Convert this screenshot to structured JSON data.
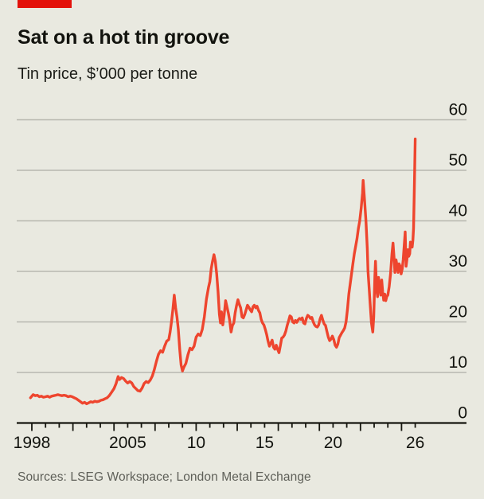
{
  "header": {
    "title": "Sat on a hot tin groove",
    "subtitle": "Tin price, $’000 per tonne"
  },
  "footer": {
    "sources": "Sources: LSEG Workspace; London Metal Exchange"
  },
  "colors": {
    "background": "#e9e9e0",
    "brand_red": "#e3120b",
    "line_red": "#ee452e",
    "gridline": "#b8b8af",
    "axis": "#16160f",
    "text_dark": "#12130e",
    "text_muted": "#5e5f58"
  },
  "chart_data": {
    "type": "line",
    "title": "Sat on a hot tin groove",
    "ylabel": "Tin price, $'000 per tonne",
    "xlabel": "",
    "ylim": [
      0,
      60
    ],
    "y_ticks": [
      0,
      10,
      20,
      30,
      40,
      50,
      60
    ],
    "grid": "horizontal",
    "x_year_ticks": {
      "start": 1998,
      "end": 2026,
      "step": 1,
      "tall_every": 3
    },
    "x_labels": [
      {
        "year": 1998,
        "label": "1998"
      },
      {
        "year": 2005,
        "label": "2005"
      },
      {
        "year": 2010,
        "label": "10"
      },
      {
        "year": 2015,
        "label": "15"
      },
      {
        "year": 2020,
        "label": "20"
      },
      {
        "year": 2026,
        "label": "26"
      }
    ],
    "series": [
      {
        "name": "Tin price, $'000 per tonne",
        "color": "#ee452e",
        "points": [
          [
            1997.9,
            5.0
          ],
          [
            1998.0,
            5.3
          ],
          [
            1998.1,
            5.6
          ],
          [
            1998.25,
            5.4
          ],
          [
            1998.4,
            5.5
          ],
          [
            1998.55,
            5.2
          ],
          [
            1998.7,
            5.3
          ],
          [
            1998.85,
            5.1
          ],
          [
            1999.0,
            5.2
          ],
          [
            1999.15,
            5.3
          ],
          [
            1999.3,
            5.1
          ],
          [
            1999.45,
            5.3
          ],
          [
            1999.6,
            5.4
          ],
          [
            1999.75,
            5.5
          ],
          [
            1999.9,
            5.6
          ],
          [
            2000.05,
            5.5
          ],
          [
            2000.2,
            5.4
          ],
          [
            2000.35,
            5.5
          ],
          [
            2000.5,
            5.4
          ],
          [
            2000.65,
            5.2
          ],
          [
            2000.8,
            5.3
          ],
          [
            2000.95,
            5.2
          ],
          [
            2001.1,
            5.0
          ],
          [
            2001.25,
            4.8
          ],
          [
            2001.4,
            4.5
          ],
          [
            2001.55,
            4.2
          ],
          [
            2001.7,
            3.9
          ],
          [
            2001.85,
            4.1
          ],
          [
            2002.0,
            3.8
          ],
          [
            2002.15,
            4.0
          ],
          [
            2002.3,
            4.2
          ],
          [
            2002.45,
            4.1
          ],
          [
            2002.6,
            4.3
          ],
          [
            2002.75,
            4.2
          ],
          [
            2002.9,
            4.3
          ],
          [
            2003.05,
            4.5
          ],
          [
            2003.2,
            4.6
          ],
          [
            2003.35,
            4.8
          ],
          [
            2003.5,
            5.0
          ],
          [
            2003.65,
            5.4
          ],
          [
            2003.8,
            6.0
          ],
          [
            2004.0,
            6.8
          ],
          [
            2004.15,
            7.8
          ],
          [
            2004.3,
            9.2
          ],
          [
            2004.4,
            8.6
          ],
          [
            2004.55,
            9.0
          ],
          [
            2004.7,
            8.8
          ],
          [
            2004.85,
            8.3
          ],
          [
            2005.0,
            7.9
          ],
          [
            2005.15,
            8.2
          ],
          [
            2005.3,
            7.9
          ],
          [
            2005.45,
            7.2
          ],
          [
            2005.6,
            6.8
          ],
          [
            2005.75,
            6.4
          ],
          [
            2005.9,
            6.3
          ],
          [
            2006.05,
            6.9
          ],
          [
            2006.2,
            7.8
          ],
          [
            2006.35,
            8.2
          ],
          [
            2006.5,
            8.0
          ],
          [
            2006.65,
            8.5
          ],
          [
            2006.8,
            9.3
          ],
          [
            2006.95,
            10.6
          ],
          [
            2007.1,
            12.2
          ],
          [
            2007.25,
            13.6
          ],
          [
            2007.4,
            14.3
          ],
          [
            2007.55,
            14.0
          ],
          [
            2007.7,
            15.2
          ],
          [
            2007.85,
            16.2
          ],
          [
            2008.0,
            16.5
          ],
          [
            2008.1,
            18.0
          ],
          [
            2008.2,
            20.0
          ],
          [
            2008.3,
            22.5
          ],
          [
            2008.4,
            25.3
          ],
          [
            2008.5,
            22.8
          ],
          [
            2008.6,
            21.0
          ],
          [
            2008.7,
            18.5
          ],
          [
            2008.8,
            14.5
          ],
          [
            2008.9,
            11.5
          ],
          [
            2009.0,
            10.3
          ],
          [
            2009.1,
            11.0
          ],
          [
            2009.25,
            11.8
          ],
          [
            2009.4,
            13.5
          ],
          [
            2009.55,
            14.8
          ],
          [
            2009.7,
            14.5
          ],
          [
            2009.85,
            15.2
          ],
          [
            2010.0,
            17.0
          ],
          [
            2010.15,
            17.6
          ],
          [
            2010.3,
            17.3
          ],
          [
            2010.45,
            18.5
          ],
          [
            2010.6,
            21.0
          ],
          [
            2010.75,
            24.5
          ],
          [
            2010.9,
            26.8
          ],
          [
            2011.0,
            28.0
          ],
          [
            2011.1,
            30.5
          ],
          [
            2011.2,
            32.0
          ],
          [
            2011.3,
            33.3
          ],
          [
            2011.4,
            32.0
          ],
          [
            2011.5,
            29.5
          ],
          [
            2011.6,
            26.0
          ],
          [
            2011.7,
            21.5
          ],
          [
            2011.78,
            19.8
          ],
          [
            2011.85,
            22.0
          ],
          [
            2011.95,
            19.4
          ],
          [
            2012.05,
            21.5
          ],
          [
            2012.15,
            24.2
          ],
          [
            2012.25,
            23.0
          ],
          [
            2012.35,
            21.8
          ],
          [
            2012.45,
            20.3
          ],
          [
            2012.55,
            18.0
          ],
          [
            2012.65,
            19.3
          ],
          [
            2012.75,
            19.8
          ],
          [
            2012.85,
            21.8
          ],
          [
            2012.95,
            23.2
          ],
          [
            2013.05,
            24.4
          ],
          [
            2013.15,
            23.5
          ],
          [
            2013.25,
            22.8
          ],
          [
            2013.35,
            21.0
          ],
          [
            2013.45,
            20.8
          ],
          [
            2013.55,
            21.5
          ],
          [
            2013.65,
            22.4
          ],
          [
            2013.75,
            23.3
          ],
          [
            2013.85,
            22.9
          ],
          [
            2013.95,
            22.4
          ],
          [
            2014.05,
            22.0
          ],
          [
            2014.15,
            23.0
          ],
          [
            2014.25,
            23.3
          ],
          [
            2014.35,
            22.8
          ],
          [
            2014.45,
            23.1
          ],
          [
            2014.55,
            22.3
          ],
          [
            2014.65,
            21.8
          ],
          [
            2014.75,
            20.5
          ],
          [
            2014.85,
            19.8
          ],
          [
            2014.95,
            19.4
          ],
          [
            2015.05,
            18.5
          ],
          [
            2015.15,
            17.5
          ],
          [
            2015.25,
            16.2
          ],
          [
            2015.35,
            15.2
          ],
          [
            2015.45,
            15.8
          ],
          [
            2015.55,
            16.4
          ],
          [
            2015.65,
            15.0
          ],
          [
            2015.75,
            14.6
          ],
          [
            2015.85,
            15.4
          ],
          [
            2015.95,
            14.6
          ],
          [
            2016.05,
            13.9
          ],
          [
            2016.15,
            15.3
          ],
          [
            2016.25,
            16.8
          ],
          [
            2016.35,
            17.0
          ],
          [
            2016.45,
            17.4
          ],
          [
            2016.55,
            18.2
          ],
          [
            2016.65,
            19.3
          ],
          [
            2016.75,
            20.2
          ],
          [
            2016.85,
            21.2
          ],
          [
            2016.95,
            21.0
          ],
          [
            2017.05,
            20.0
          ],
          [
            2017.15,
            19.8
          ],
          [
            2017.25,
            20.3
          ],
          [
            2017.35,
            19.9
          ],
          [
            2017.45,
            20.4
          ],
          [
            2017.55,
            20.7
          ],
          [
            2017.65,
            20.5
          ],
          [
            2017.75,
            20.8
          ],
          [
            2017.85,
            19.8
          ],
          [
            2017.95,
            19.6
          ],
          [
            2018.05,
            20.7
          ],
          [
            2018.15,
            21.3
          ],
          [
            2018.25,
            21.1
          ],
          [
            2018.35,
            20.7
          ],
          [
            2018.45,
            20.9
          ],
          [
            2018.55,
            20.0
          ],
          [
            2018.65,
            19.4
          ],
          [
            2018.75,
            19.1
          ],
          [
            2018.85,
            19.0
          ],
          [
            2018.95,
            19.4
          ],
          [
            2019.05,
            20.6
          ],
          [
            2019.15,
            21.3
          ],
          [
            2019.25,
            20.4
          ],
          [
            2019.35,
            19.6
          ],
          [
            2019.45,
            19.3
          ],
          [
            2019.55,
            18.1
          ],
          [
            2019.65,
            17.0
          ],
          [
            2019.75,
            16.3
          ],
          [
            2019.85,
            16.6
          ],
          [
            2019.95,
            17.2
          ],
          [
            2020.05,
            16.5
          ],
          [
            2020.15,
            15.4
          ],
          [
            2020.25,
            15.0
          ],
          [
            2020.35,
            15.6
          ],
          [
            2020.45,
            16.9
          ],
          [
            2020.55,
            17.4
          ],
          [
            2020.65,
            17.9
          ],
          [
            2020.75,
            18.3
          ],
          [
            2020.85,
            18.8
          ],
          [
            2020.95,
            20.0
          ],
          [
            2021.05,
            22.5
          ],
          [
            2021.15,
            25.5
          ],
          [
            2021.25,
            27.5
          ],
          [
            2021.35,
            29.5
          ],
          [
            2021.45,
            31.5
          ],
          [
            2021.55,
            33.5
          ],
          [
            2021.65,
            35.0
          ],
          [
            2021.75,
            36.5
          ],
          [
            2021.85,
            38.5
          ],
          [
            2021.95,
            40.0
          ],
          [
            2022.05,
            42.5
          ],
          [
            2022.15,
            45.5
          ],
          [
            2022.2,
            48.0
          ],
          [
            2022.3,
            44.0
          ],
          [
            2022.4,
            40.0
          ],
          [
            2022.5,
            34.5
          ],
          [
            2022.55,
            30.0
          ],
          [
            2022.65,
            26.0
          ],
          [
            2022.7,
            24.0
          ],
          [
            2022.8,
            19.8
          ],
          [
            2022.9,
            18.0
          ],
          [
            2022.97,
            21.0
          ],
          [
            2023.05,
            29.0
          ],
          [
            2023.1,
            32.0
          ],
          [
            2023.18,
            26.5
          ],
          [
            2023.25,
            25.0
          ],
          [
            2023.32,
            28.8
          ],
          [
            2023.4,
            27.0
          ],
          [
            2023.48,
            25.3
          ],
          [
            2023.55,
            28.3
          ],
          [
            2023.62,
            26.0
          ],
          [
            2023.7,
            24.3
          ],
          [
            2023.78,
            25.5
          ],
          [
            2023.85,
            24.2
          ],
          [
            2023.92,
            25.0
          ],
          [
            2024.0,
            25.3
          ],
          [
            2024.1,
            27.0
          ],
          [
            2024.2,
            29.5
          ],
          [
            2024.3,
            33.5
          ],
          [
            2024.38,
            35.6
          ],
          [
            2024.45,
            33.0
          ],
          [
            2024.52,
            29.8
          ],
          [
            2024.6,
            32.3
          ],
          [
            2024.68,
            31.0
          ],
          [
            2024.75,
            29.8
          ],
          [
            2024.82,
            31.5
          ],
          [
            2024.9,
            31.0
          ],
          [
            2024.97,
            29.5
          ],
          [
            2025.05,
            30.5
          ],
          [
            2025.12,
            32.3
          ],
          [
            2025.2,
            35.2
          ],
          [
            2025.27,
            37.8
          ],
          [
            2025.33,
            31.0
          ],
          [
            2025.4,
            32.5
          ],
          [
            2025.47,
            34.3
          ],
          [
            2025.53,
            33.0
          ],
          [
            2025.6,
            33.5
          ],
          [
            2025.65,
            35.8
          ],
          [
            2025.72,
            35.2
          ],
          [
            2025.78,
            34.8
          ],
          [
            2025.83,
            36.2
          ],
          [
            2025.88,
            38.5
          ],
          [
            2025.92,
            44.0
          ],
          [
            2025.96,
            50.0
          ],
          [
            2026.0,
            56.2
          ]
        ]
      }
    ]
  }
}
